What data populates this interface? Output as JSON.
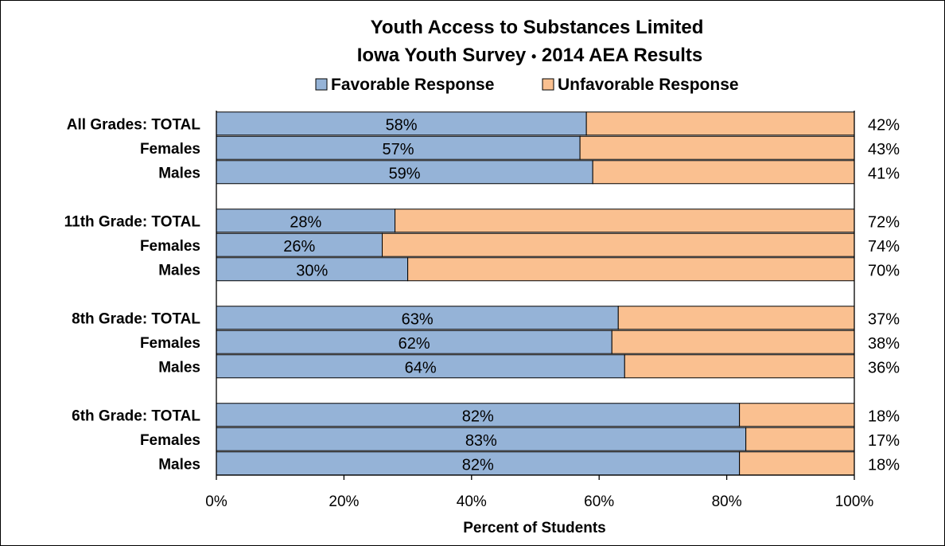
{
  "chart_data": {
    "type": "bar",
    "orientation": "horizontal",
    "stacked": "percent",
    "title": [
      "Youth Access to Substances Limited",
      "Iowa Youth Survey",
      "2014 AEA Results"
    ],
    "title_separator": "•",
    "xlabel": "Percent of Students",
    "xlim": [
      0,
      100
    ],
    "xticks": [
      "0%",
      "20%",
      "40%",
      "60%",
      "80%",
      "100%"
    ],
    "grid": false,
    "legend_position": "top",
    "groups": [
      {
        "name": "All Grades",
        "rows": [
          {
            "label": "All Grades:  TOTAL",
            "favorable": 58,
            "unfavorable": 42
          },
          {
            "label": "Females",
            "favorable": 57,
            "unfavorable": 43
          },
          {
            "label": "Males",
            "favorable": 59,
            "unfavorable": 41
          }
        ]
      },
      {
        "name": "11th Grade",
        "rows": [
          {
            "label": "11th Grade:  TOTAL",
            "favorable": 28,
            "unfavorable": 72
          },
          {
            "label": "Females",
            "favorable": 26,
            "unfavorable": 74
          },
          {
            "label": "Males",
            "favorable": 30,
            "unfavorable": 70
          }
        ]
      },
      {
        "name": "8th Grade",
        "rows": [
          {
            "label": "8th Grade:  TOTAL",
            "favorable": 63,
            "unfavorable": 37
          },
          {
            "label": "Females",
            "favorable": 62,
            "unfavorable": 38
          },
          {
            "label": "Males",
            "favorable": 64,
            "unfavorable": 36
          }
        ]
      },
      {
        "name": "6th Grade",
        "rows": [
          {
            "label": "6th Grade:  TOTAL",
            "favorable": 82,
            "unfavorable": 18
          },
          {
            "label": "Females",
            "favorable": 83,
            "unfavorable": 17
          },
          {
            "label": "Males",
            "favorable": 82,
            "unfavorable": 18
          }
        ]
      }
    ],
    "series": [
      {
        "name": "Favorable Response",
        "key": "favorable",
        "color": "#95B3D7"
      },
      {
        "name": "Unfavorable Response",
        "key": "unfavorable",
        "color": "#FAC090"
      }
    ]
  }
}
